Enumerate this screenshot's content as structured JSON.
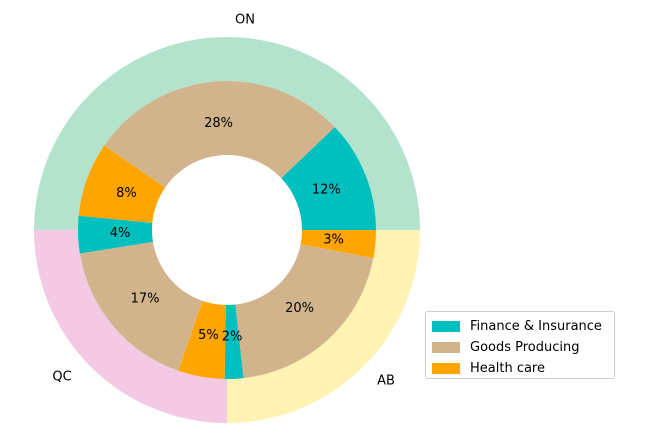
{
  "chart_data": {
    "type": "pie",
    "title": "",
    "outer": {
      "categories": [
        "ON",
        "QC",
        "AB"
      ],
      "values": [
        50,
        25,
        25
      ],
      "colors": [
        "#b3e3cd",
        "#f4c9e4",
        "#fff2b3"
      ]
    },
    "inner": {
      "series": [
        "Finance & Insurance",
        "Goods Producing",
        "Health care"
      ],
      "colors": [
        "#00bfbf",
        "#d2b48c",
        "#ffa500"
      ],
      "slices": [
        {
          "region": "ON",
          "series": "Finance & Insurance",
          "value": 12,
          "label": "12%"
        },
        {
          "region": "ON",
          "series": "Goods Producing",
          "value": 28,
          "label": "28%"
        },
        {
          "region": "ON",
          "series": "Health care",
          "value": 8,
          "label": "8%"
        },
        {
          "region": "QC",
          "series": "Finance & Insurance",
          "value": 4,
          "label": "4%"
        },
        {
          "region": "QC",
          "series": "Goods Producing",
          "value": 17,
          "label": "17%"
        },
        {
          "region": "QC",
          "series": "Health care",
          "value": 5,
          "label": "5%"
        },
        {
          "region": "AB",
          "series": "Finance & Insurance",
          "value": 2,
          "label": "2%"
        },
        {
          "region": "AB",
          "series": "Goods Producing",
          "value": 20,
          "label": "20%"
        },
        {
          "region": "AB",
          "series": "Health care",
          "value": 3,
          "label": "3%"
        }
      ]
    },
    "legend": {
      "placement": "lower-right",
      "entries": [
        "Finance & Insurance",
        "Goods Producing",
        "Health care"
      ]
    }
  }
}
